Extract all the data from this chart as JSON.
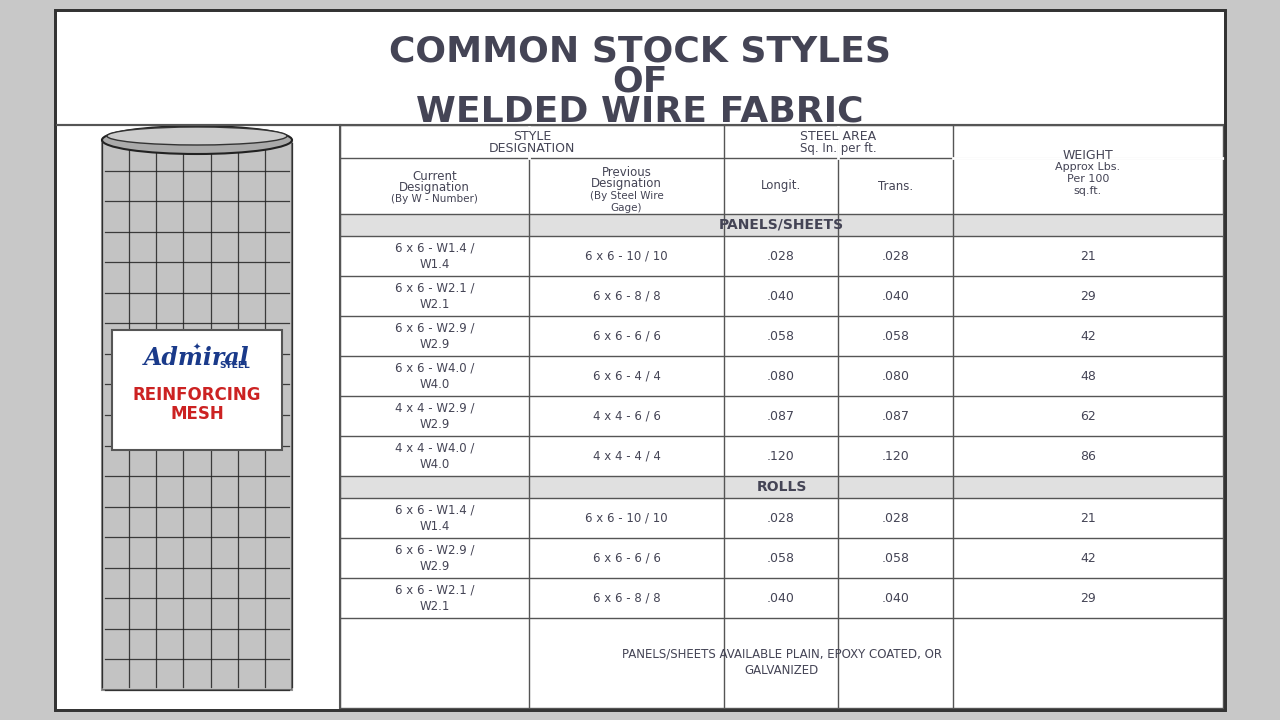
{
  "title_line1": "COMMON STOCK STYLES",
  "title_line2": "OF",
  "title_line3": "WELDED WIRE FABRIC",
  "bg_color": "#ffffff",
  "page_bg": "#c8c8c8",
  "border_color": "#555555",
  "text_color": "#444455",
  "section_bg": "#e0e0e0",
  "panels_rows": [
    [
      "6 x 6 - W1.4 /\nW1.4",
      "6 x 6 - 10 / 10",
      ".028",
      ".028",
      "21"
    ],
    [
      "6 x 6 - W2.1 /\nW2.1",
      "6 x 6 - 8 / 8",
      ".040",
      ".040",
      "29"
    ],
    [
      "6 x 6 - W2.9 /\nW2.9",
      "6 x 6 - 6 / 6",
      ".058",
      ".058",
      "42"
    ],
    [
      "6 x 6 - W4.0 /\nW4.0",
      "6 x 6 - 4 / 4",
      ".080",
      ".080",
      "48"
    ],
    [
      "4 x 4 - W2.9 /\nW2.9",
      "4 x 4 - 6 / 6",
      ".087",
      ".087",
      "62"
    ],
    [
      "4 x 4 - W4.0 /\nW4.0",
      "4 x 4 - 4 / 4",
      ".120",
      ".120",
      "86"
    ]
  ],
  "rolls_rows": [
    [
      "6 x 6 - W1.4 /\nW1.4",
      "6 x 6 - 10 / 10",
      ".028",
      ".028",
      "21"
    ],
    [
      "6 x 6 - W2.9 /\nW2.9",
      "6 x 6 - 6 / 6",
      ".058",
      ".058",
      "42"
    ],
    [
      "6 x 6 - W2.1 /\nW2.1",
      "6 x 6 - 8 / 8",
      ".040",
      ".040",
      "29"
    ]
  ],
  "footer_text": "PANELS/SHEETS AVAILABLE PLAIN, EPOXY COATED, OR\nGALVANIZED",
  "admiral_color": "#1a3a8a",
  "reinforcing_color": "#cc2222"
}
